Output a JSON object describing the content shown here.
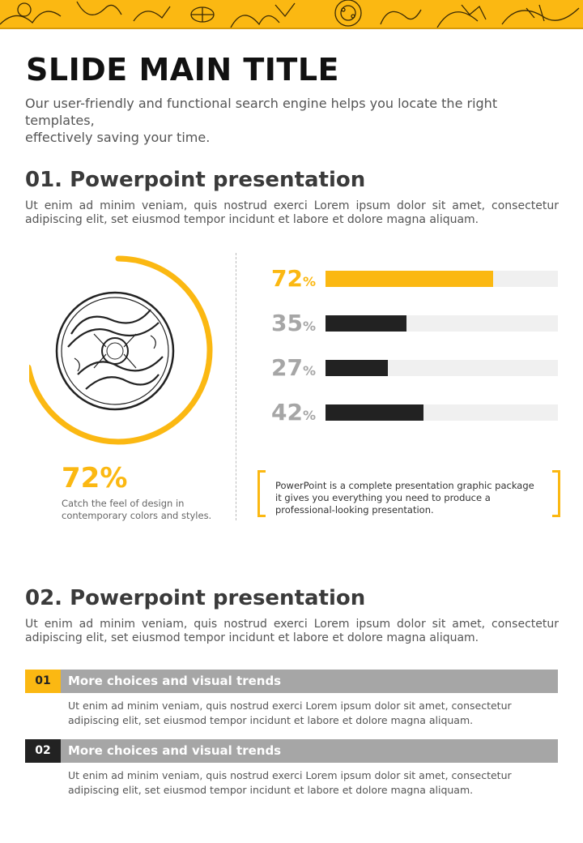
{
  "colors": {
    "accent": "#fbb812",
    "dark": "#222222",
    "gray": "#a6a6a6",
    "track": "#f0f0f0"
  },
  "header": {
    "title": "SLIDE MAIN TITLE",
    "subtitle_line1": "Our user-friendly and functional  search engine helps you locate the right templates,",
    "subtitle_line2": "effectively saving your time."
  },
  "section1": {
    "heading": "01. Powerpoint presentation",
    "body": "Ut enim ad minim veniam, quis nostrud exerci  Lorem ipsum dolor sit amet, consectetur adipiscing elit, set eiusmod tempor incidunt et labore et dolore magna aliquam."
  },
  "donut": {
    "value": 72,
    "label": "72%",
    "caption_line1": "Catch the feel of design in",
    "caption_line2": "contemporary colors and styles.",
    "icon": "donut-pastry-icon"
  },
  "bars": [
    {
      "number": "72",
      "unit": "%",
      "value": 72,
      "color": "#fbb812",
      "label_color": "#fbb812"
    },
    {
      "number": "35",
      "unit": "%",
      "value": 35,
      "color": "#222222",
      "label_color": "#a6a6a6"
    },
    {
      "number": "27",
      "unit": "%",
      "value": 27,
      "color": "#222222",
      "label_color": "#a6a6a6"
    },
    {
      "number": "42",
      "unit": "%",
      "value": 42,
      "color": "#222222",
      "label_color": "#a6a6a6"
    }
  ],
  "callout": {
    "line1": "PowerPoint is a complete presentation graphic package",
    "line2": "it gives you everything you need to produce a",
    "line3": "professional-looking presentation."
  },
  "section2": {
    "heading": "02. Powerpoint presentation",
    "body": "Ut enim ad minim veniam, quis nostrud exerci  Lorem ipsum dolor sit amet, consectetur adipiscing elit, set eiusmod tempor incidunt et labore et dolore magna aliquam."
  },
  "list": [
    {
      "number": "01",
      "title": "More choices and visual trends",
      "body_line1": "Ut enim ad minim veniam, quis nostrud exerci  Lorem ipsum dolor sit amet, consectetur",
      "body_line2": "adipiscing elit, set eiusmod tempor incidunt et labore  et dolore magna aliquam."
    },
    {
      "number": "02",
      "title": "More choices and visual trends",
      "body_line1": "Ut enim ad minim veniam, quis nostrud exerci  Lorem ipsum dolor sit amet, consectetur",
      "body_line2": "adipiscing elit, set eiusmod tempor incidunt et labore  et dolore magna aliquam."
    }
  ]
}
